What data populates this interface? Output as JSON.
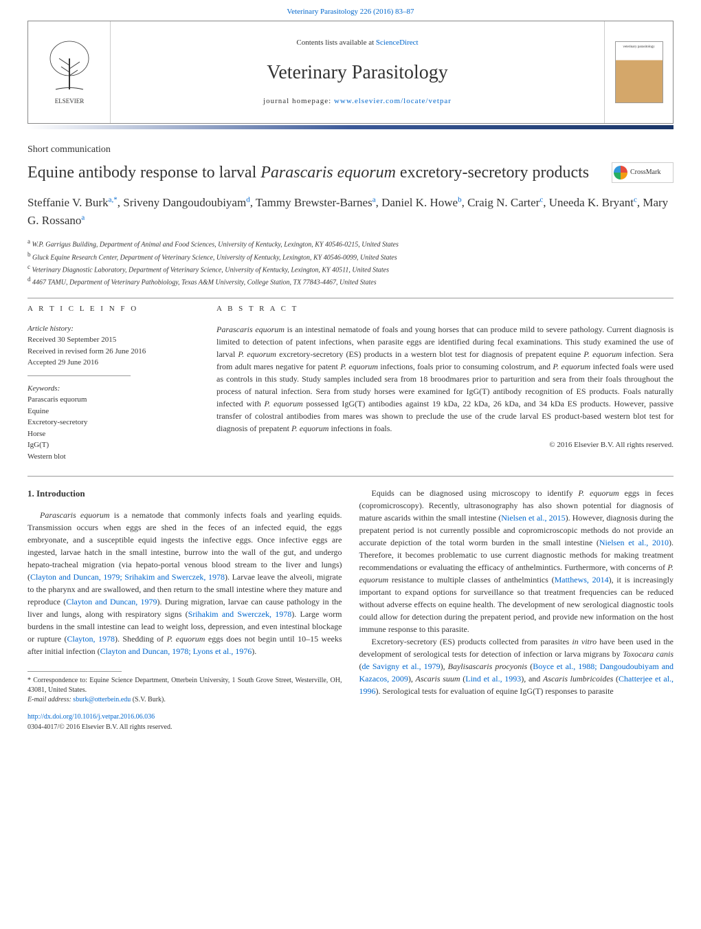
{
  "header": {
    "top_link": "Veterinary Parasitology 226 (2016) 83–87",
    "contents_prefix": "Contents lists available at ",
    "contents_link": "ScienceDirect",
    "journal_title": "Veterinary Parasitology",
    "homepage_prefix": "journal homepage: ",
    "homepage_link": "www.elsevier.com/locate/vetpar",
    "elsevier_label": "ELSEVIER",
    "cover_label": "veterinary parasitology"
  },
  "article": {
    "short_comm": "Short communication",
    "title_pre": "Equine antibody response to larval ",
    "title_species": "Parascaris equorum",
    "title_post": " excretory-secretory products",
    "crossmark": "CrossMark",
    "authors_html": "Steffanie V. Burk<sup>a,*</sup>, Sriveny Dangoudoubiyam<sup>d</sup>, Tammy Brewster-Barnes<sup>a</sup>, Daniel K. Howe<sup>b</sup>, Craig N. Carter<sup>c</sup>, Uneeda K. Bryant<sup>c</sup>, Mary G. Rossano<sup>a</sup>",
    "affiliations": [
      "a W.P. Garrigus Building, Department of Animal and Food Sciences, University of Kentucky, Lexington, KY 40546-0215, United States",
      "b Gluck Equine Research Center, Department of Veterinary Science, University of Kentucky, Lexington, KY 40546-0099, United States",
      "c Veterinary Diagnostic Laboratory, Department of Veterinary Science, University of Kentucky, Lexington, KY 40511, United States",
      "d 4467 TAMU, Department of Veterinary Pathobiology, Texas A&M University, College Station, TX 77843-4467, United States"
    ]
  },
  "info": {
    "heading": "A R T I C L E   I N F O",
    "history_label": "Article history:",
    "received": "Received 30 September 2015",
    "revised": "Received in revised form 26 June 2016",
    "accepted": "Accepted 29 June 2016",
    "keywords_label": "Keywords:",
    "keywords": [
      "Parascaris equorum",
      "Equine",
      "Excretory-secretory",
      "Horse",
      "IgG(T)",
      "Western blot"
    ]
  },
  "abstract": {
    "heading": "A B S T R A C T",
    "text_parts": [
      {
        "t": "Parascaris equorum",
        "i": true
      },
      {
        "t": " is an intestinal nematode of foals and young horses that can produce mild to severe pathology. Current diagnosis is limited to detection of patent infections, when parasite eggs are identified during fecal examinations. This study examined the use of larval "
      },
      {
        "t": "P. equorum",
        "i": true
      },
      {
        "t": " excretory-secretory (ES) products in a western blot test for diagnosis of prepatent equine "
      },
      {
        "t": "P. equorum",
        "i": true
      },
      {
        "t": " infection. Sera from adult mares negative for patent "
      },
      {
        "t": "P. equorum",
        "i": true
      },
      {
        "t": " infections, foals prior to consuming colostrum, and "
      },
      {
        "t": "P. equorum",
        "i": true
      },
      {
        "t": " infected foals were used as controls in this study. Study samples included sera from 18 broodmares prior to parturition and sera from their foals throughout the process of natural infection. Sera from study horses were examined for IgG(T) antibody recognition of ES products. Foals naturally infected with "
      },
      {
        "t": "P. equorum",
        "i": true
      },
      {
        "t": " possessed IgG(T) antibodies against 19 kDa, 22 kDa, 26 kDa, and 34 kDa ES products. However, passive transfer of colostral antibodies from mares was shown to preclude the use of the crude larval ES product-based western blot test for diagnosis of prepatent "
      },
      {
        "t": "P. equorum",
        "i": true
      },
      {
        "t": " infections in foals."
      }
    ],
    "copyright": "© 2016 Elsevier B.V. All rights reserved."
  },
  "body": {
    "intro_heading": "1. Introduction",
    "col1_paras": [
      [
        {
          "t": "Parascaris equorum",
          "i": true
        },
        {
          "t": " is a nematode that commonly infects foals and yearling equids. Transmission occurs when eggs are shed in the feces of an infected equid, the eggs embryonate, and a susceptible equid ingests the infective eggs. Once infective eggs are ingested, larvae hatch in the small intestine, burrow into the wall of the gut, and undergo hepato-tracheal migration (via hepato-portal venous blood stream to the liver and lungs) ("
        },
        {
          "t": "Clayton and Duncan, 1979; Srihakim and Swerczek, 1978",
          "c": true
        },
        {
          "t": "). Larvae leave the alveoli, migrate to the pharynx and are swallowed, and then return to the small intestine where they mature and reproduce ("
        },
        {
          "t": "Clayton and Duncan, 1979",
          "c": true
        },
        {
          "t": "). During migration, larvae can cause pathology in the liver and lungs, along with respiratory signs ("
        },
        {
          "t": "Srihakim and Swerczek, 1978",
          "c": true
        },
        {
          "t": "). Large worm burdens in the small intestine can lead to weight loss, depression, and even intestinal blockage or rupture ("
        },
        {
          "t": "Clayton, 1978",
          "c": true
        },
        {
          "t": "). Shedding of "
        },
        {
          "t": "P. equorum",
          "i": true
        },
        {
          "t": " eggs does not begin until 10–15 weeks after initial infection ("
        },
        {
          "t": "Clayton and Duncan, 1978; Lyons et al., 1976",
          "c": true
        },
        {
          "t": ")."
        }
      ]
    ],
    "col2_paras": [
      [
        {
          "t": "Equids can be diagnosed using microscopy to identify "
        },
        {
          "t": "P. equorum",
          "i": true
        },
        {
          "t": " eggs in feces (copromicroscopy). Recently, ultrasonography has also shown potential for diagnosis of mature ascarids within the small intestine ("
        },
        {
          "t": "Nielsen et al., 2015",
          "c": true
        },
        {
          "t": "). However, diagnosis during the prepatent period is not currently possible and copromicroscopic methods do not provide an accurate depiction of the total worm burden in the small intestine ("
        },
        {
          "t": "Nielsen et al., 2010",
          "c": true
        },
        {
          "t": "). Therefore, it becomes problematic to use current diagnostic methods for making treatment recommendations or evaluating the efficacy of anthelmintics. Furthermore, with concerns of "
        },
        {
          "t": "P. equorum",
          "i": true
        },
        {
          "t": " resistance to multiple classes of anthelmintics ("
        },
        {
          "t": "Matthews, 2014",
          "c": true
        },
        {
          "t": "), it is increasingly important to expand options for surveillance so that treatment frequencies can be reduced without adverse effects on equine health. The development of new serological diagnostic tools could allow for detection during the prepatent period, and provide new information on the host immune response to this parasite."
        }
      ],
      [
        {
          "t": "Excretory-secretory (ES) products collected from parasites "
        },
        {
          "t": "in vitro",
          "i": true
        },
        {
          "t": " have been used in the development of serological tests for detection of infection or larva migrans by "
        },
        {
          "t": "Toxocara canis",
          "i": true
        },
        {
          "t": " ("
        },
        {
          "t": "de Savigny et al., 1979",
          "c": true
        },
        {
          "t": "), "
        },
        {
          "t": "Baylisascaris procyonis",
          "i": true
        },
        {
          "t": " ("
        },
        {
          "t": "Boyce et al., 1988; Dangoudoubiyam and Kazacos, 2009",
          "c": true
        },
        {
          "t": "), "
        },
        {
          "t": "Ascaris suum",
          "i": true
        },
        {
          "t": " ("
        },
        {
          "t": "Lind et al., 1993",
          "c": true
        },
        {
          "t": "), and "
        },
        {
          "t": "Ascaris lumbricoides",
          "i": true
        },
        {
          "t": " ("
        },
        {
          "t": "Chatterjee et al., 1996",
          "c": true
        },
        {
          "t": "). Serological tests for evaluation of equine IgG(T) responses to parasite"
        }
      ]
    ]
  },
  "footnotes": {
    "corr": "* Correspondence to: Equine Science Department, Otterbein University, 1 South Grove Street, Westerville, OH, 43081, United States.",
    "email_label": "E-mail address: ",
    "email": "sburk@otterbein.edu",
    "email_suffix": " (S.V. Burk).",
    "doi": "http://dx.doi.org/10.1016/j.vetpar.2016.06.036",
    "issn": "0304-4017/© 2016 Elsevier B.V. All rights reserved."
  }
}
